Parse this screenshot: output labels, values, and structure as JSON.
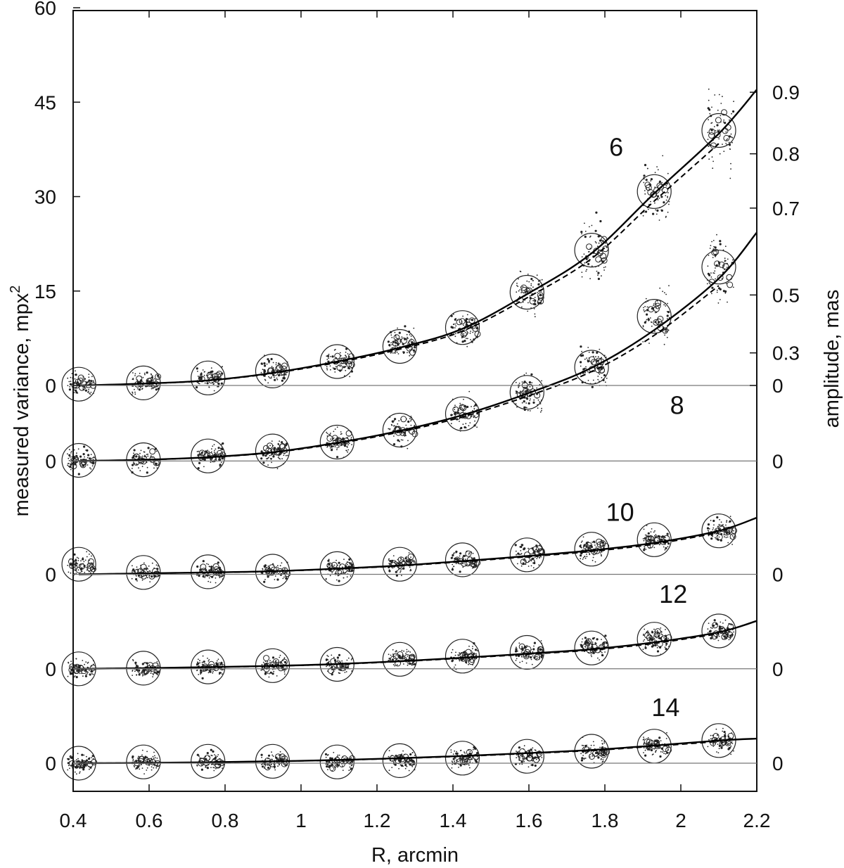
{
  "chart_data": {
    "type": "scatter",
    "title": "",
    "xlabel": "R, arcmin",
    "ylabel": "measured variance, mpx",
    "ylabel_sup": "2",
    "ylabel_right": "amplitude, mas",
    "xlim": [
      0.4,
      2.2
    ],
    "x_ticks": [
      "0.4",
      "0.6",
      "0.8",
      "1",
      "1.2",
      "1.4",
      "1.6",
      "1.8",
      "2",
      "2.2"
    ],
    "left_ticks_top_panel": [
      "60",
      "45",
      "30",
      "15",
      "0"
    ],
    "left_ticks_baselines": [
      "0",
      "0",
      "0",
      "0"
    ],
    "right_ticks_top_panel": [
      "0.9",
      "0.8",
      "0.7",
      "0.5",
      "0.3",
      "0"
    ],
    "right_ticks_baselines": [
      "0",
      "0",
      "0",
      "0"
    ],
    "top_panel_ylim": [
      0,
      60
    ],
    "bins_x": [
      0.415,
      0.585,
      0.755,
      0.925,
      1.095,
      1.26,
      1.425,
      1.595,
      1.765,
      1.93,
      2.1
    ],
    "series": [
      {
        "name": "6",
        "baseline_offset": 0,
        "fit_at_bins": [
          0.0,
          0.3,
          0.8,
          2.0,
          3.8,
          6.0,
          9.0,
          14.5,
          21.0,
          30.5,
          40.0
        ],
        "fit_end": 47.0,
        "bin_means": [
          0.2,
          0.4,
          1.2,
          2.3,
          3.8,
          6.2,
          9.2,
          14.8,
          21.5,
          30.8,
          40.5
        ]
      },
      {
        "name": "8",
        "baseline_offset": -12,
        "fit_at_bins": [
          0.0,
          0.2,
          0.6,
          1.4,
          2.9,
          4.8,
          7.3,
          10.7,
          14.8,
          20.8,
          29.0
        ],
        "fit_end": 36.3,
        "bin_means": [
          0.1,
          0.2,
          0.8,
          1.6,
          3.0,
          4.9,
          7.5,
          10.9,
          14.9,
          23.0,
          30.8
        ]
      },
      {
        "name": "10",
        "baseline_offset": -30,
        "fit_at_bins": [
          0.0,
          0.15,
          0.3,
          0.5,
          0.9,
          1.4,
          2.1,
          2.9,
          3.8,
          5.0,
          6.9
        ],
        "fit_end": 9.0,
        "bin_means": [
          1.6,
          0.3,
          0.4,
          0.5,
          0.9,
          1.6,
          2.3,
          3.1,
          4.0,
          5.5,
          6.9
        ]
      },
      {
        "name": "12",
        "baseline_offset": -45,
        "fit_at_bins": [
          0.0,
          0.1,
          0.25,
          0.45,
          0.75,
          1.2,
          1.75,
          2.4,
          3.1,
          4.2,
          5.8
        ],
        "fit_end": 7.6,
        "bin_means": [
          0.0,
          0.1,
          0.3,
          0.5,
          0.7,
          1.5,
          2.0,
          2.6,
          3.3,
          4.7,
          6.0
        ]
      },
      {
        "name": "14",
        "baseline_offset": -60,
        "fit_at_bins": [
          0.0,
          0.05,
          0.15,
          0.3,
          0.5,
          0.8,
          1.15,
          1.6,
          2.1,
          2.8,
          3.6
        ],
        "fit_end": 3.9,
        "bin_means": [
          0.0,
          0.2,
          0.3,
          0.3,
          0.2,
          0.4,
          0.8,
          1.1,
          1.9,
          2.7,
          3.6
        ]
      }
    ],
    "grid": false,
    "legend": "none"
  }
}
